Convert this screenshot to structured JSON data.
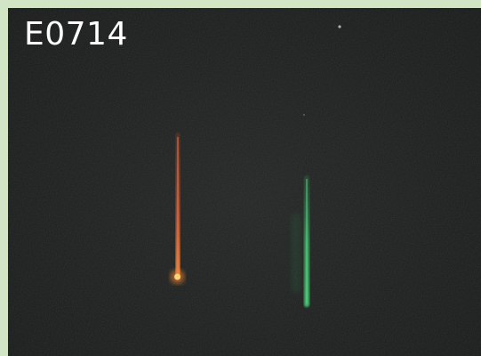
{
  "image": {
    "label": "E0714"
  },
  "colors": {
    "frame": "#d2e5c4",
    "sky": "#1a1c1b",
    "red_trail": "#e06a3a",
    "red_head": "#ffb050",
    "green_trail": "#3fbf6a"
  }
}
